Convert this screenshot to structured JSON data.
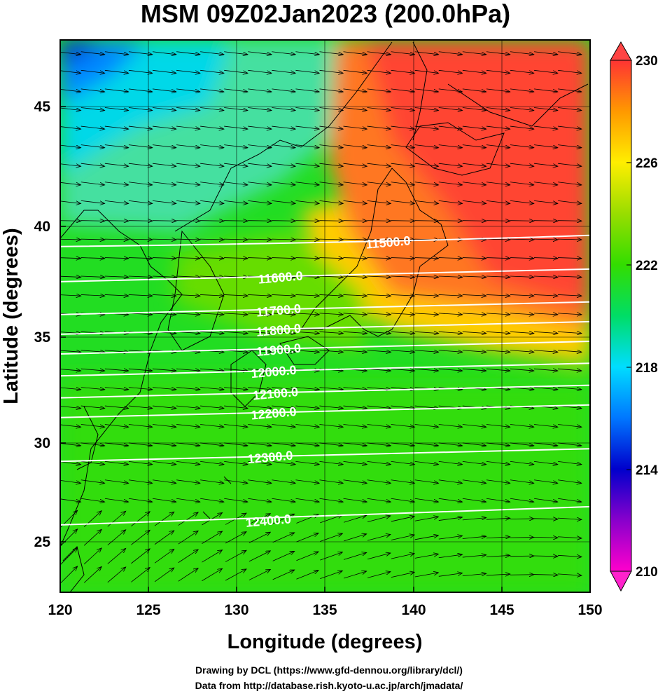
{
  "title": "MSM 09Z02Jan2023 (200.0hPa)",
  "xlabel": "Longitude (degrees)",
  "ylabel": "Latitude  (degrees)",
  "credits": {
    "line1": "Drawing by DCL (https://www.gfd-dennou.org/library/dcl/)",
    "line2": "Data from http://database.rish.kyoto-u.ac.jp/arch/jmadata/"
  },
  "chart_data": {
    "type": "heatmap",
    "variable": "temperature (K) with geopotential height contours and wind vectors",
    "xlim": [
      120,
      150
    ],
    "ylim": [
      22.4,
      47.6
    ],
    "xticks": [
      "120",
      "125",
      "130",
      "135",
      "140",
      "145",
      "150"
    ],
    "yticks": [
      "25",
      "30",
      "35",
      "40",
      "45"
    ],
    "colorbar": {
      "range": [
        210,
        230
      ],
      "ticks": [
        "210",
        "214",
        "218",
        "222",
        "226",
        "230"
      ],
      "colors": {
        "210": "#ff00cc",
        "212": "#8800cc",
        "214": "#0000cc",
        "216": "#0077ff",
        "218": "#00ddff",
        "220": "#00dd66",
        "222": "#33dd00",
        "224": "#99dd00",
        "226": "#ffee00",
        "228": "#ff9900",
        "230": "#ff3333"
      }
    },
    "contours": [
      {
        "label": "11500.0",
        "label_lon": 137.3,
        "label_lat": 38.3
      },
      {
        "label": "11600.0",
        "label_lon": 131.2,
        "label_lat": 36.7
      },
      {
        "label": "11700.0",
        "label_lon": 131.1,
        "label_lat": 35.2
      },
      {
        "label": "11800.0",
        "label_lon": 131.1,
        "label_lat": 34.3
      },
      {
        "label": "11900.0",
        "label_lon": 131.1,
        "label_lat": 33.4
      },
      {
        "label": "12000.0",
        "label_lon": 130.8,
        "label_lat": 32.4
      },
      {
        "label": "12100.0",
        "label_lon": 130.9,
        "label_lat": 31.4
      },
      {
        "label": "12200.0",
        "label_lon": 130.8,
        "label_lat": 30.5
      },
      {
        "label": "12300.0",
        "label_lon": 130.6,
        "label_lat": 28.5
      },
      {
        "label": "12400.0",
        "label_lon": 130.5,
        "label_lat": 25.6
      }
    ]
  }
}
